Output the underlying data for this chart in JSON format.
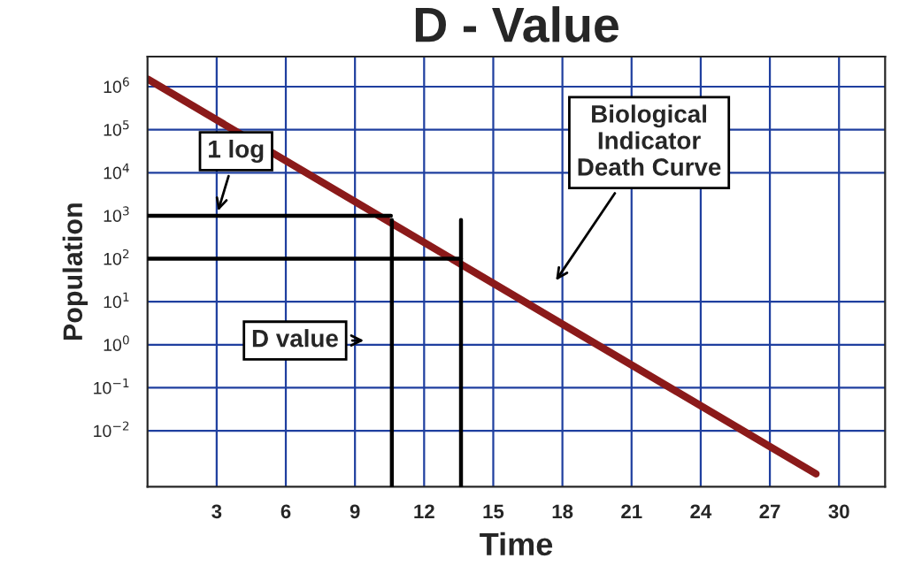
{
  "chart_data": {
    "type": "line",
    "title": "D - Value",
    "xlabel": "Time",
    "ylabel": "Population",
    "x": [
      0,
      29
    ],
    "series": [
      {
        "color": "#8b1a1a",
        "values": [
          1500000,
          0.001
        ]
      }
    ],
    "xlim": [
      0,
      32
    ],
    "xticks": [
      3,
      6,
      9,
      12,
      15,
      18,
      21,
      24,
      27,
      30
    ],
    "log": true,
    "ylim": [
      0.0005,
      5000000
    ],
    "yticks": [
      {
        "value": 0.01,
        "label": "10$^{−2}$"
      },
      {
        "value": 0.1,
        "label": "10$^{−1}$"
      },
      {
        "value": 1,
        "label": "10$^{0}$"
      },
      {
        "value": 10,
        "label": "10$^{1}$"
      },
      {
        "value": 100,
        "label": "10$^{2}$"
      },
      {
        "value": 1000,
        "label": "10$^{3}$"
      },
      {
        "value": 10000,
        "label": "10$^{4}$"
      },
      {
        "value": 100000,
        "label": "10$^{5}$"
      },
      {
        "value": 1000000,
        "label": "10$^{6}$"
      }
    ],
    "ref_lines": [
      {
        "axis": "y",
        "value": 1000,
        "color": "#000000"
      },
      {
        "axis": "y",
        "value": 100,
        "color": "#000000"
      },
      {
        "axis": "x",
        "value": 10.6,
        "color": "#000000"
      },
      {
        "axis": "x",
        "value": 13.6,
        "color": "#000000"
      }
    ],
    "annotations": [
      {
        "text": "1 log",
        "x": 3,
        "y": 1000
      },
      "D value",
      "Biological\nIndicator\nDeath Curve"
    ],
    "grid": true,
    "marker": "none",
    "line_style": "solid",
    "legend": false
  }
}
